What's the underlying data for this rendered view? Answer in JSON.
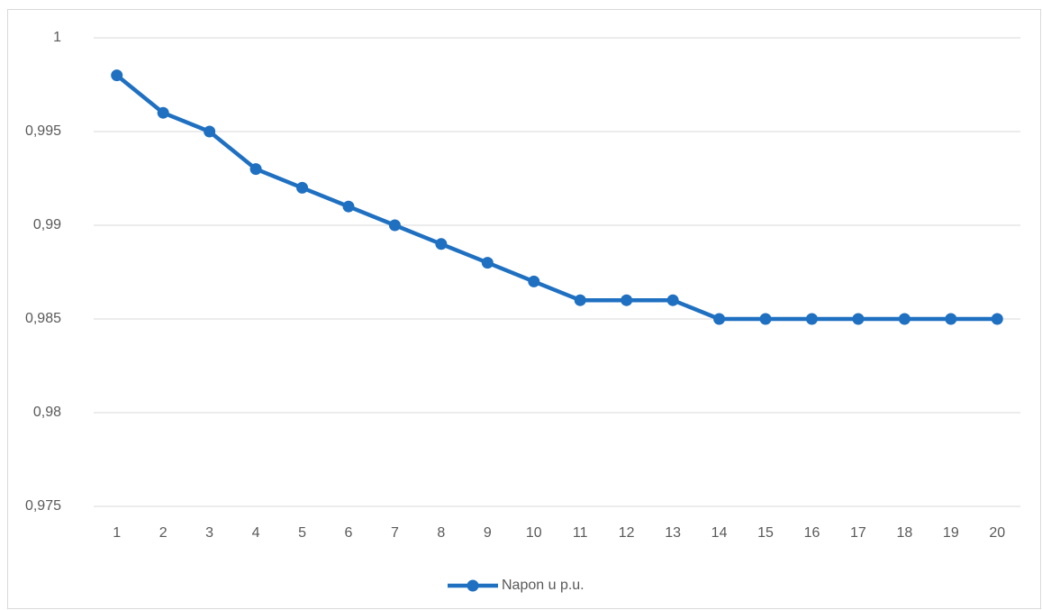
{
  "chart_data": {
    "type": "line",
    "categories": [
      "1",
      "2",
      "3",
      "4",
      "5",
      "6",
      "7",
      "8",
      "9",
      "10",
      "11",
      "12",
      "13",
      "14",
      "15",
      "16",
      "17",
      "18",
      "19",
      "20"
    ],
    "series": [
      {
        "name": "Napon u p.u.",
        "color": "#1f70c1",
        "values": [
          0.998,
          0.996,
          0.995,
          0.993,
          0.992,
          0.991,
          0.99,
          0.989,
          0.988,
          0.987,
          0.986,
          0.986,
          0.986,
          0.985,
          0.985,
          0.985,
          0.985,
          0.985,
          0.985,
          0.985
        ]
      }
    ],
    "ylim": [
      0.975,
      1
    ],
    "yticks": [
      {
        "value": 0.975,
        "label": "0,975"
      },
      {
        "value": 0.98,
        "label": "0,98"
      },
      {
        "value": 0.985,
        "label": "0,985"
      },
      {
        "value": 0.99,
        "label": "0,99"
      },
      {
        "value": 0.995,
        "label": "0,995"
      },
      1
    ],
    "grid": true,
    "legend": "bottom"
  }
}
